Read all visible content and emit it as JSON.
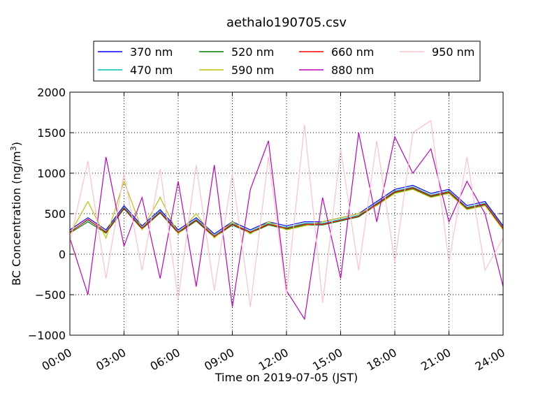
{
  "chart_data": {
    "type": "line",
    "title": "aethalo190705.csv",
    "xlabel": "Time on 2019-07-05 (JST)",
    "ylabel_main": "BC Concentration (ng/m",
    "ylabel_sup": "3",
    "ylabel_end": ")",
    "xlim_hours": [
      0,
      24
    ],
    "ylim": [
      -1000,
      2000
    ],
    "grid": true,
    "legend": "top-center",
    "x_ticks": [
      {
        "value": 0,
        "label": "00:00"
      },
      {
        "value": 3,
        "label": "03:00"
      },
      {
        "value": 6,
        "label": "06:00"
      },
      {
        "value": 9,
        "label": "09:00"
      },
      {
        "value": 12,
        "label": "12:00"
      },
      {
        "value": 15,
        "label": "15:00"
      },
      {
        "value": 18,
        "label": "18:00"
      },
      {
        "value": 21,
        "label": "21:00"
      },
      {
        "value": 24,
        "label": "24:00"
      }
    ],
    "y_ticks": [
      {
        "value": 2000,
        "label": "2000"
      },
      {
        "value": 1500,
        "label": "1500"
      },
      {
        "value": 1000,
        "label": "1000"
      },
      {
        "value": 500,
        "label": "500"
      },
      {
        "value": 0,
        "label": "0"
      },
      {
        "value": -500,
        "label": "−500"
      },
      {
        "value": -1000,
        "label": "−1000"
      }
    ],
    "series": [
      {
        "name": "370 nm",
        "color": "#0000ff",
        "x": [
          0,
          1,
          2,
          3,
          4,
          5,
          6,
          7,
          8,
          9,
          10,
          11,
          12,
          13,
          14,
          15,
          16,
          17,
          18,
          19,
          20,
          21,
          22,
          23,
          24
        ],
        "y": [
          300,
          450,
          300,
          600,
          350,
          550,
          300,
          450,
          250,
          400,
          300,
          400,
          350,
          400,
          400,
          450,
          500,
          650,
          800,
          850,
          750,
          800,
          600,
          650,
          350
        ]
      },
      {
        "name": "470 nm",
        "color": "#00bfbf",
        "x": [
          0,
          1,
          2,
          3,
          4,
          5,
          6,
          7,
          8,
          9,
          10,
          11,
          12,
          13,
          14,
          15,
          16,
          17,
          18,
          19,
          20,
          21,
          22,
          23,
          24
        ],
        "y": [
          280,
          420,
          280,
          580,
          330,
          530,
          280,
          430,
          230,
          380,
          280,
          380,
          330,
          380,
          380,
          430,
          480,
          630,
          780,
          830,
          730,
          780,
          580,
          630,
          330
        ]
      },
      {
        "name": "520 nm",
        "color": "#008000",
        "x": [
          0,
          1,
          2,
          3,
          4,
          5,
          6,
          7,
          8,
          9,
          10,
          11,
          12,
          13,
          14,
          15,
          16,
          17,
          18,
          19,
          20,
          21,
          22,
          23,
          24
        ],
        "y": [
          260,
          400,
          260,
          560,
          310,
          510,
          260,
          410,
          210,
          360,
          260,
          360,
          310,
          360,
          360,
          410,
          460,
          610,
          760,
          810,
          710,
          760,
          560,
          610,
          310
        ]
      },
      {
        "name": "590 nm",
        "color": "#bfbf00",
        "x": [
          0,
          1,
          2,
          3,
          4,
          5,
          6,
          7,
          8,
          9,
          10,
          11,
          12,
          13,
          14,
          15,
          16,
          17,
          18,
          19,
          20,
          21,
          22,
          23,
          24
        ],
        "y": [
          250,
          650,
          200,
          900,
          300,
          700,
          250,
          500,
          200,
          400,
          250,
          400,
          300,
          350,
          400,
          450,
          500,
          600,
          750,
          800,
          700,
          750,
          550,
          600,
          300
        ]
      },
      {
        "name": "660 nm",
        "color": "#ff0000",
        "x": [
          0,
          1,
          2,
          3,
          4,
          5,
          6,
          7,
          8,
          9,
          10,
          11,
          12,
          13,
          14,
          15,
          16,
          17,
          18,
          19,
          20,
          21,
          22,
          23,
          24
        ],
        "y": [
          270,
          430,
          270,
          570,
          320,
          520,
          270,
          420,
          220,
          370,
          270,
          370,
          320,
          370,
          370,
          420,
          470,
          620,
          770,
          820,
          720,
          770,
          570,
          620,
          320
        ]
      },
      {
        "name": "880 nm",
        "color": "#bf00bf",
        "x": [
          0,
          1,
          2,
          3,
          4,
          5,
          6,
          7,
          8,
          9,
          10,
          11,
          12,
          13,
          14,
          15,
          16,
          17,
          18,
          19,
          20,
          21,
          22,
          23,
          24
        ],
        "y": [
          200,
          -500,
          1200,
          100,
          700,
          -300,
          900,
          -400,
          1100,
          -650,
          800,
          1400,
          -450,
          -800,
          700,
          -300,
          1500,
          400,
          1450,
          1000,
          1300,
          400,
          900,
          500,
          -400
        ]
      },
      {
        "name": "950 nm",
        "color": "#ffc0cb",
        "x": [
          0,
          1,
          2,
          3,
          4,
          5,
          6,
          7,
          8,
          9,
          10,
          11,
          12,
          13,
          14,
          15,
          16,
          17,
          18,
          19,
          20,
          21,
          22,
          23,
          24
        ],
        "y": [
          150,
          1150,
          -300,
          1000,
          -200,
          1050,
          -550,
          1100,
          -450,
          1000,
          -650,
          1200,
          -500,
          1600,
          -600,
          1300,
          -200,
          1400,
          -100,
          1500,
          1650,
          -100,
          1200,
          -200,
          200
        ]
      }
    ]
  }
}
